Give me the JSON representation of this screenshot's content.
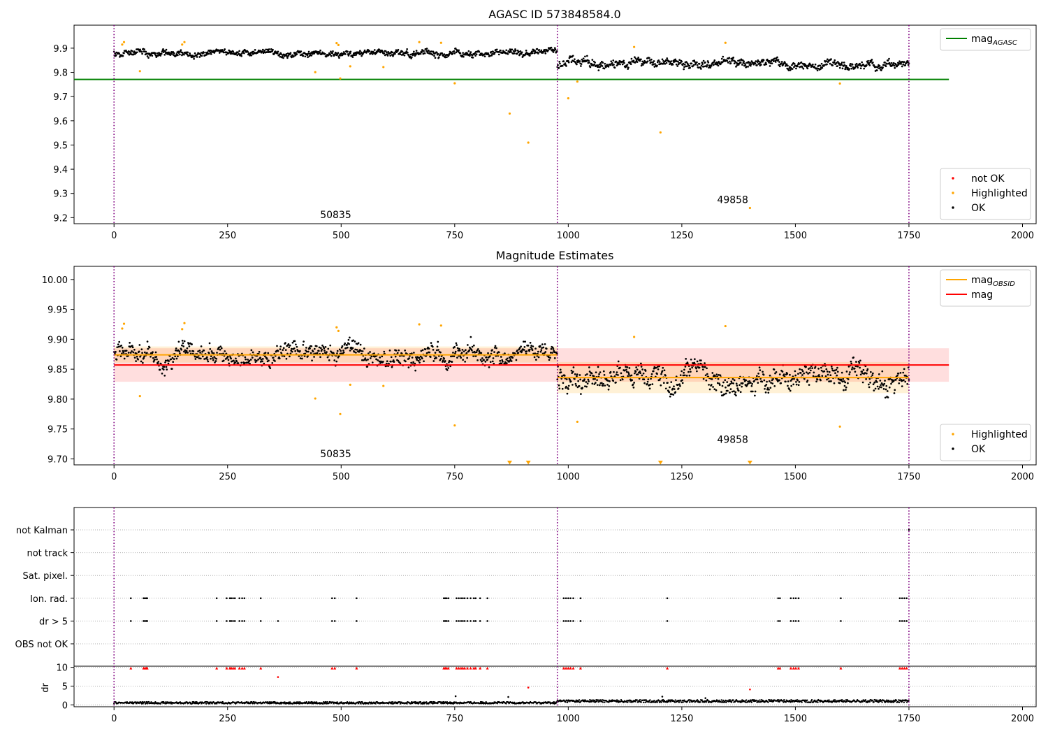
{
  "chart_data": [
    {
      "type": "scatter",
      "title": "AGASC ID 573848584.0",
      "xlim": [
        -88,
        2030
      ],
      "ylim": [
        9.175,
        9.995
      ],
      "xticks": [
        0,
        250,
        500,
        750,
        1000,
        1250,
        1500,
        1750,
        2000
      ],
      "yticks": [
        9.2,
        9.3,
        9.4,
        9.5,
        9.6,
        9.7,
        9.8,
        9.9
      ],
      "ytick_decimals": 1,
      "vlines": [
        0,
        976,
        1750
      ],
      "hlines": [
        {
          "name": "mag_AGASC",
          "y": 9.771,
          "x": [
            -88,
            1838
          ],
          "color": "#008000"
        }
      ],
      "annotations": [
        {
          "text": "50835",
          "x": 488,
          "y": 9.198
        },
        {
          "text": "49858",
          "x": 1362,
          "y": 9.26
        }
      ],
      "legends": [
        {
          "position": "top-right",
          "entries": [
            {
              "kind": "line",
              "label": "mag",
              "sub": "AGASC",
              "color": "#008000"
            }
          ]
        },
        {
          "position": "lower-right",
          "entries": [
            {
              "kind": "dot",
              "label": "not OK",
              "color": "#ff0000"
            },
            {
              "kind": "dot",
              "label": "Highlighted",
              "color": "#ffa500"
            },
            {
              "kind": "dot",
              "label": "OK",
              "color": "#000000"
            }
          ]
        }
      ],
      "series": [
        {
          "name": "OK",
          "color": "#000000",
          "segments": [
            {
              "start": 0,
              "end": 976,
              "level": 9.877,
              "spread": 0.014
            },
            {
              "start": 976,
              "end": 1750,
              "level": 9.836,
              "spread": 0.018
            }
          ]
        },
        {
          "name": "Highlighted",
          "color": "#ffa500",
          "x": [
            18,
            22,
            57,
            150,
            155,
            443,
            490,
            494,
            498,
            520,
            593,
            672,
            720,
            750,
            871,
            912,
            1000,
            1020,
            1145,
            1203,
            1346,
            1400,
            1598
          ],
          "y": [
            9.915,
            9.925,
            9.805,
            9.915,
            9.925,
            9.801,
            9.921,
            9.913,
            9.775,
            9.825,
            9.822,
            9.925,
            9.922,
            9.755,
            9.63,
            9.51,
            9.693,
            9.762,
            9.905,
            9.552,
            9.922,
            9.24,
            9.754
          ]
        },
        {
          "name": "not OK",
          "color": "#ff0000",
          "x": [],
          "y": []
        }
      ]
    },
    {
      "type": "scatter",
      "title": "Magnitude Estimates",
      "xlim": [
        -88,
        2030
      ],
      "ylim": [
        9.69,
        10.022
      ],
      "xticks": [
        0,
        250,
        500,
        750,
        1000,
        1250,
        1500,
        1750,
        2000
      ],
      "yticks": [
        9.7,
        9.75,
        9.8,
        9.85,
        9.9,
        9.95,
        10.0
      ],
      "ytick_decimals": 2,
      "vlines": [
        0,
        976,
        1750
      ],
      "bands": [
        {
          "name": "mag",
          "x": [
            0,
            1838
          ],
          "y": [
            9.829,
            9.885
          ],
          "color": "#ff0000",
          "alpha": 0.13
        },
        {
          "name": "mag_OBSID 50835",
          "x": [
            0,
            976
          ],
          "y": [
            9.861,
            9.888
          ],
          "color": "#ffa500",
          "alpha": 0.16
        },
        {
          "name": "mag_OBSID 49858",
          "x": [
            976,
            1750
          ],
          "y": [
            9.81,
            9.862
          ],
          "color": "#ffa500",
          "alpha": 0.16
        }
      ],
      "lines": [
        {
          "name": "mag",
          "color": "#ff0000",
          "x": [
            0,
            1838
          ],
          "y": [
            9.857,
            9.857
          ]
        },
        {
          "name": "mag_OBSID 50835",
          "color": "#ffa500",
          "x": [
            0,
            976
          ],
          "y": [
            9.874,
            9.874
          ]
        },
        {
          "name": "mag_OBSID 49858",
          "color": "#ffa500",
          "x": [
            976,
            1750
          ],
          "y": [
            9.836,
            9.836
          ]
        }
      ],
      "annotations": [
        {
          "text": "50835",
          "x": 488,
          "y": 9.703
        },
        {
          "text": "49858",
          "x": 1362,
          "y": 9.727
        }
      ],
      "legends": [
        {
          "position": "top-right",
          "entries": [
            {
              "kind": "line",
              "label": "mag",
              "sub": "OBSID",
              "color": "#ffa500"
            },
            {
              "kind": "line",
              "label": "mag",
              "color": "#ff0000"
            }
          ]
        },
        {
          "position": "lower-right",
          "entries": [
            {
              "kind": "dot",
              "label": "Highlighted",
              "color": "#ffa500"
            },
            {
              "kind": "dot",
              "label": "OK",
              "color": "#000000"
            }
          ]
        }
      ],
      "series": [
        {
          "name": "OK",
          "color": "#000000",
          "segments": [
            {
              "start": 0,
              "end": 976,
              "level": 9.874,
              "spread": 0.016
            },
            {
              "start": 976,
              "end": 1750,
              "level": 9.834,
              "spread": 0.02
            }
          ]
        },
        {
          "name": "Highlighted",
          "color": "#ffa500",
          "x": [
            18,
            22,
            57,
            150,
            155,
            443,
            490,
            494,
            498,
            520,
            593,
            672,
            720,
            750,
            1020,
            1145,
            1346,
            1598
          ],
          "y": [
            9.918,
            9.926,
            9.805,
            9.917,
            9.927,
            9.801,
            9.92,
            9.914,
            9.775,
            9.824,
            9.822,
            9.925,
            9.923,
            9.756,
            9.762,
            9.904,
            9.922,
            9.754
          ]
        },
        {
          "name": "Highlighted below range",
          "color": "#ffa500",
          "x": [
            871,
            912,
            1203,
            1400
          ],
          "y": [
            9.694,
            9.694,
            9.694,
            9.694
          ]
        }
      ]
    },
    {
      "type": "scatter",
      "title": "",
      "xlim": [
        -88,
        2030
      ],
      "vlines": [
        0,
        976,
        1750
      ],
      "flag_rows": [
        "not Kalman",
        "not track",
        "Sat. pixel.",
        "Ion. rad.",
        "dr > 5",
        "OBS not OK"
      ],
      "flag_points": {
        "not Kalman": [
          1750
        ],
        "not track": [],
        "Sat. pixel.": [],
        "Ion. rad.": [
          37,
          65,
          68,
          71,
          73,
          226,
          248,
          255,
          258,
          262,
          266,
          276,
          282,
          287,
          323,
          480,
          486,
          534,
          726,
          729,
          732,
          736,
          754,
          759,
          764,
          768,
          772,
          778,
          785,
          792,
          796,
          806,
          822,
          990,
          995,
          1000,
          1005,
          1011,
          1027,
          1218,
          1462,
          1466,
          1490,
          1496,
          1501,
          1507,
          1600,
          1730,
          1735,
          1740,
          1745
        ],
        "dr > 5": [
          37,
          65,
          68,
          71,
          73,
          226,
          248,
          255,
          258,
          262,
          266,
          276,
          282,
          287,
          323,
          361,
          480,
          486,
          534,
          726,
          729,
          732,
          736,
          754,
          759,
          764,
          768,
          772,
          778,
          785,
          792,
          796,
          806,
          822,
          990,
          995,
          1000,
          1005,
          1011,
          1027,
          1218,
          1462,
          1466,
          1490,
          1496,
          1501,
          1507,
          1600,
          1730,
          1735,
          1740,
          1745
        ],
        "OBS not OK": []
      }
    },
    {
      "type": "scatter",
      "title": "",
      "ylabel": "dr",
      "xlim": [
        -88,
        2030
      ],
      "ylim": [
        -0.5,
        10.3
      ],
      "yticks": [
        0,
        5,
        10
      ],
      "xticks": [
        0,
        250,
        500,
        750,
        1000,
        1250,
        1500,
        1750,
        2000
      ],
      "vlines": [
        0,
        976,
        1750
      ],
      "series": [
        {
          "name": "dr",
          "color": "#000000",
          "segments": [
            {
              "start": 0,
              "end": 976,
              "level": 0.55,
              "spread": 0.25
            },
            {
              "start": 976,
              "end": 1750,
              "level": 1.0,
              "spread": 0.35
            }
          ]
        },
        {
          "name": "dr clipped",
          "color": "#ff0000",
          "x": [
            37,
            65,
            68,
            71,
            73,
            226,
            248,
            255,
            258,
            262,
            266,
            276,
            282,
            287,
            323,
            480,
            486,
            534,
            726,
            729,
            732,
            736,
            754,
            759,
            764,
            768,
            772,
            778,
            785,
            792,
            796,
            806,
            822,
            990,
            995,
            1000,
            1005,
            1011,
            1027,
            1218,
            1462,
            1466,
            1490,
            1496,
            1501,
            1507,
            1600,
            1730,
            1735,
            1740,
            1745
          ],
          "y": 9.8
        },
        {
          "name": "dr outliers",
          "color": "#ff0000",
          "x": [
            361,
            912,
            1400
          ],
          "y": [
            7.4,
            4.6,
            4.1
          ]
        },
        {
          "name": "dr spikes",
          "color": "#000000",
          "x": [
            752,
            868,
            1207,
            1302
          ],
          "y": [
            2.3,
            2.1,
            2.2,
            1.8
          ]
        }
      ]
    }
  ]
}
